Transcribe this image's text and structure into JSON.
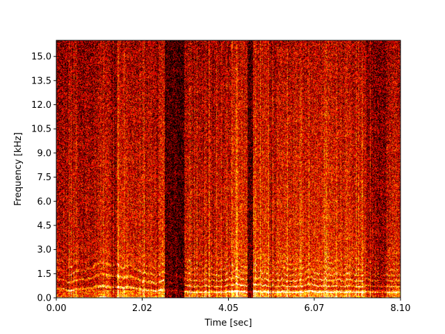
{
  "chart_data": {
    "type": "heatmap",
    "title": "",
    "xlabel": "Time [sec]",
    "ylabel": "Frequency [kHz]",
    "xlim": [
      0.0,
      8.1
    ],
    "ylim": [
      0.0,
      16.0
    ],
    "x_ticks": [
      "0.00",
      "2.02",
      "4.05",
      "6.07",
      "8.10"
    ],
    "x_tick_values": [
      0.0,
      2.02,
      4.05,
      6.07,
      8.1
    ],
    "y_ticks": [
      "0.0",
      "1.5",
      "3.0",
      "4.5",
      "6.0",
      "7.5",
      "9.0",
      "10.5",
      "12.0",
      "13.5",
      "15.0"
    ],
    "y_tick_values": [
      0.0,
      1.5,
      3.0,
      4.5,
      6.0,
      7.5,
      9.0,
      10.5,
      12.0,
      13.5,
      15.0
    ],
    "colormap": "hot",
    "colors": {
      "low": "#000000",
      "mid": "#e03000",
      "high": "#ffff60"
    },
    "silent_gaps_sec": [
      [
        2.55,
        3.0
      ],
      [
        4.5,
        4.62
      ]
    ],
    "grid": false
  }
}
